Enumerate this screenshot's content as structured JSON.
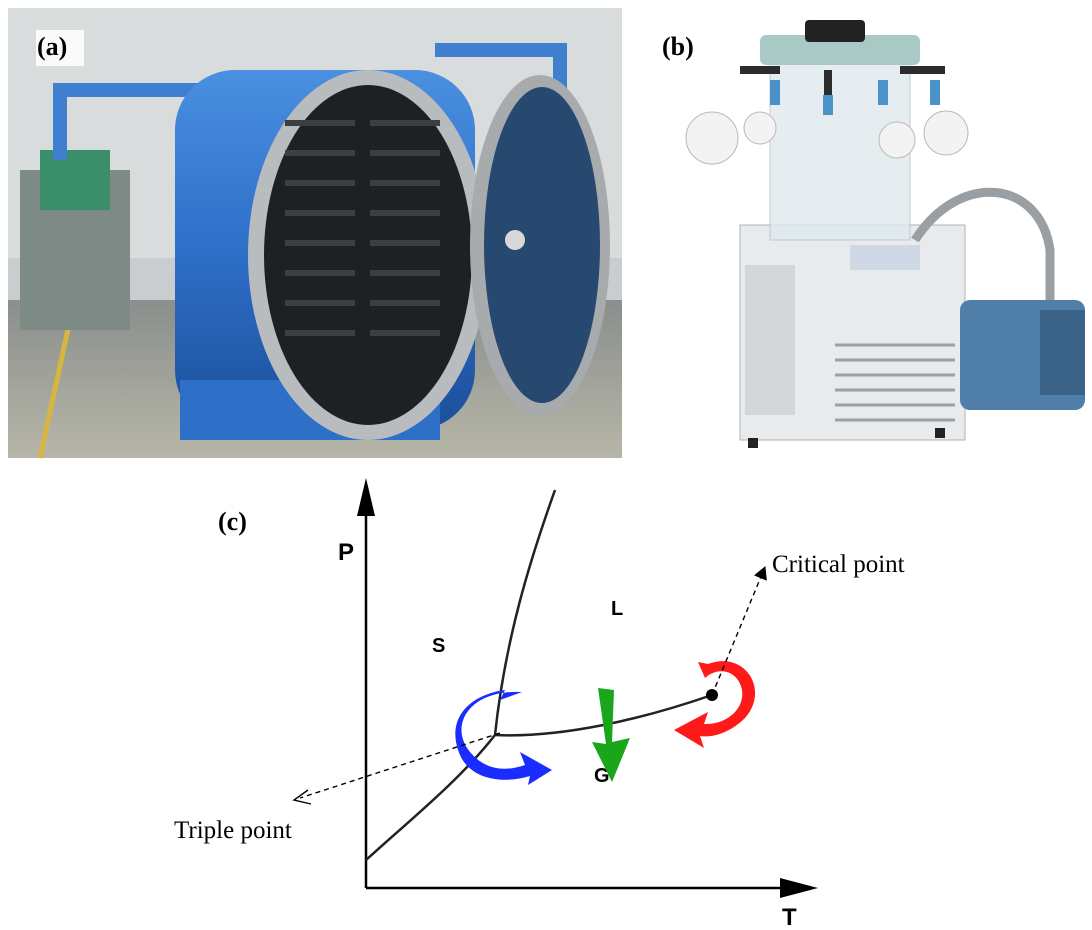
{
  "panels": {
    "a": {
      "label": "(a)"
    },
    "b": {
      "label": "(b)"
    },
    "c": {
      "label": "(c)",
      "y_axis": "P",
      "x_axis": "T",
      "regions": {
        "solid": "S",
        "liquid": "L",
        "gas": "G"
      },
      "annotations": {
        "critical": "Critical point",
        "triple": "Triple point"
      }
    }
  }
}
